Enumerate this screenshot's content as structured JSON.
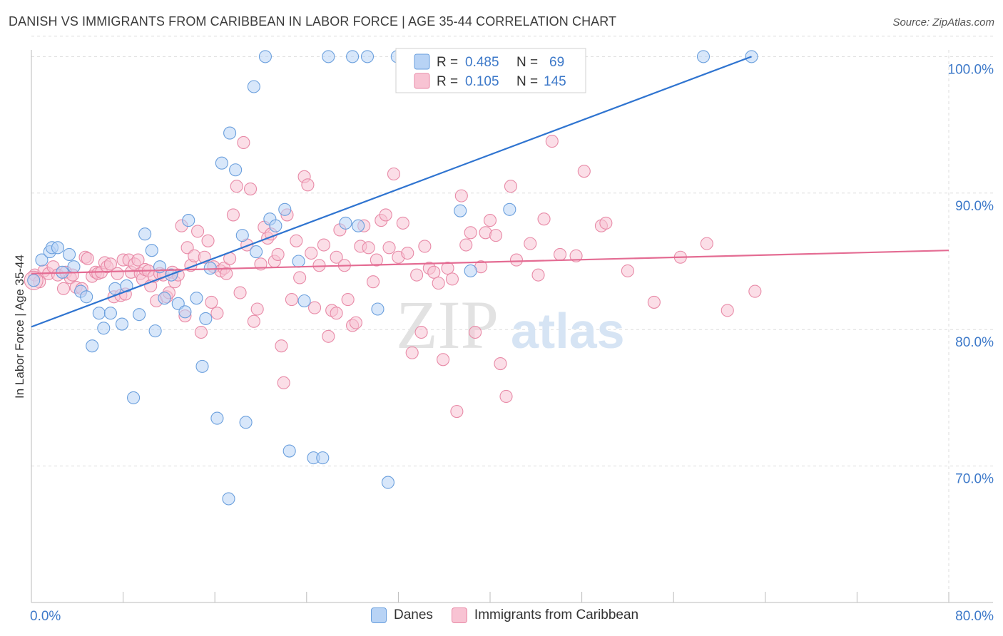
{
  "title": "DANISH VS IMMIGRANTS FROM CARIBBEAN IN LABOR FORCE | AGE 35-44 CORRELATION CHART",
  "source": "Source: ZipAtlas.com",
  "watermark": {
    "zip": "ZIP",
    "atlas": "atlas"
  },
  "colors": {
    "blue_fill": "#b8d3f5",
    "blue_stroke": "#6a9fdd",
    "blue_line": "#2f74d0",
    "pink_fill": "#f8c3d3",
    "pink_stroke": "#e88aa7",
    "pink_line": "#e46c93",
    "axis_label": "#3d79c9",
    "grid": "#dddddd"
  },
  "legend_top": {
    "r_label": "R =",
    "n_label": "N =",
    "rows": [
      {
        "series": "Danes",
        "r": "0.485",
        "n": "69"
      },
      {
        "series": "Immigrants from Caribbean",
        "r": "0.105",
        "n": "145"
      }
    ]
  },
  "legend_bottom": [
    "Danes",
    "Immigrants from Caribbean"
  ],
  "chart_data": {
    "type": "scatter",
    "title": "DANISH VS IMMIGRANTS FROM CARIBBEAN IN LABOR FORCE | AGE 35-44 CORRELATION CHART",
    "xlabel": "",
    "ylabel": "In Labor Force | Age 35-44",
    "xlim": [
      0,
      80
    ],
    "ylim": [
      60,
      102
    ],
    "x_tick_labels": [
      "0.0%",
      "80.0%"
    ],
    "y_ticks": [
      70,
      80,
      90,
      100
    ],
    "y_tick_labels": [
      "70.0%",
      "80.0%",
      "90.0%",
      "100.0%"
    ],
    "grid": true,
    "series": [
      {
        "name": "Danes",
        "r": 0.485,
        "n": 69,
        "trend": {
          "x": [
            0,
            62.8
          ],
          "y": [
            80.2,
            100.0
          ]
        },
        "points": [
          [
            0.2,
            83.6
          ],
          [
            0.9,
            85.1
          ],
          [
            1.6,
            85.7
          ],
          [
            1.8,
            86.0
          ],
          [
            2.3,
            86.0
          ],
          [
            2.7,
            84.2
          ],
          [
            3.3,
            85.5
          ],
          [
            3.7,
            84.6
          ],
          [
            4.3,
            82.8
          ],
          [
            4.8,
            82.4
          ],
          [
            5.3,
            78.8
          ],
          [
            5.9,
            81.2
          ],
          [
            6.3,
            80.1
          ],
          [
            6.9,
            81.2
          ],
          [
            7.3,
            83.0
          ],
          [
            7.9,
            80.4
          ],
          [
            8.3,
            83.2
          ],
          [
            8.9,
            75.0
          ],
          [
            9.4,
            81.1
          ],
          [
            9.9,
            87.0
          ],
          [
            10.5,
            85.8
          ],
          [
            10.8,
            79.9
          ],
          [
            11.2,
            84.6
          ],
          [
            11.6,
            82.3
          ],
          [
            12.2,
            84.0
          ],
          [
            12.8,
            81.9
          ],
          [
            13.4,
            81.3
          ],
          [
            13.7,
            88.0
          ],
          [
            14.4,
            82.3
          ],
          [
            14.9,
            77.3
          ],
          [
            15.2,
            80.8
          ],
          [
            15.6,
            84.5
          ],
          [
            16.2,
            73.5
          ],
          [
            16.6,
            92.2
          ],
          [
            17.3,
            94.4
          ],
          [
            17.8,
            91.7
          ],
          [
            18.7,
            73.2
          ],
          [
            18.4,
            86.9
          ],
          [
            19.4,
            97.8
          ],
          [
            19.6,
            85.7
          ],
          [
            20.4,
            100.0
          ],
          [
            20.8,
            88.1
          ],
          [
            21.3,
            87.6
          ],
          [
            22.1,
            88.8
          ],
          [
            22.5,
            71.1
          ],
          [
            23.3,
            85.0
          ],
          [
            23.8,
            82.1
          ],
          [
            24.6,
            70.6
          ],
          [
            25.4,
            70.6
          ],
          [
            25.9,
            100.0
          ],
          [
            27.4,
            87.8
          ],
          [
            28.0,
            100.0
          ],
          [
            28.5,
            87.6
          ],
          [
            29.3,
            100.0
          ],
          [
            30.2,
            81.5
          ],
          [
            31.1,
            68.8
          ],
          [
            31.9,
            100.0
          ],
          [
            32.4,
            100.0
          ],
          [
            33.1,
            100.0
          ],
          [
            34.2,
            100.0
          ],
          [
            36.1,
            100.0
          ],
          [
            37.4,
            88.7
          ],
          [
            38.3,
            84.3
          ],
          [
            40.1,
            100.0
          ],
          [
            41.7,
            88.8
          ],
          [
            47.6,
            100.0
          ],
          [
            58.6,
            100.0
          ],
          [
            62.8,
            100.0
          ],
          [
            17.2,
            67.6
          ]
        ]
      },
      {
        "name": "Immigrants from Caribbean",
        "r": 0.105,
        "n": 145,
        "trend": {
          "x": [
            0,
            80
          ],
          "y": [
            84.1,
            85.8
          ]
        },
        "points": [
          [
            0.3,
            84.0
          ],
          [
            0.7,
            83.5
          ],
          [
            1.1,
            84.3
          ],
          [
            1.5,
            84.1
          ],
          [
            1.9,
            84.6
          ],
          [
            2.3,
            84.0
          ],
          [
            2.8,
            83.0
          ],
          [
            3.0,
            84.2
          ],
          [
            3.4,
            83.8
          ],
          [
            3.6,
            84.0
          ],
          [
            3.9,
            83.1
          ],
          [
            4.4,
            83.0
          ],
          [
            4.7,
            85.3
          ],
          [
            4.9,
            85.2
          ],
          [
            5.3,
            83.9
          ],
          [
            5.6,
            84.2
          ],
          [
            5.8,
            84.1
          ],
          [
            6.1,
            84.2
          ],
          [
            6.4,
            84.9
          ],
          [
            6.6,
            84.6
          ],
          [
            6.9,
            84.8
          ],
          [
            7.2,
            82.4
          ],
          [
            7.5,
            84.1
          ],
          [
            7.8,
            82.5
          ],
          [
            8.0,
            85.1
          ],
          [
            8.2,
            82.6
          ],
          [
            8.5,
            85.1
          ],
          [
            8.7,
            84.2
          ],
          [
            9.0,
            84.8
          ],
          [
            9.3,
            85.1
          ],
          [
            9.5,
            84.1
          ],
          [
            9.7,
            83.7
          ],
          [
            9.9,
            84.4
          ],
          [
            10.2,
            84.3
          ],
          [
            10.4,
            83.2
          ],
          [
            10.7,
            83.9
          ],
          [
            10.9,
            82.1
          ],
          [
            11.2,
            84.1
          ],
          [
            11.5,
            84.0
          ],
          [
            11.8,
            82.4
          ],
          [
            12.0,
            82.7
          ],
          [
            12.3,
            84.2
          ],
          [
            12.5,
            83.5
          ],
          [
            12.8,
            84.0
          ],
          [
            13.1,
            87.6
          ],
          [
            13.4,
            81.0
          ],
          [
            13.6,
            86.0
          ],
          [
            13.9,
            84.7
          ],
          [
            14.2,
            85.4
          ],
          [
            14.5,
            87.2
          ],
          [
            14.8,
            79.8
          ],
          [
            15.1,
            85.3
          ],
          [
            15.4,
            86.5
          ],
          [
            15.7,
            82.0
          ],
          [
            15.9,
            84.6
          ],
          [
            16.2,
            81.2
          ],
          [
            16.5,
            84.3
          ],
          [
            16.8,
            84.5
          ],
          [
            17.0,
            84.1
          ],
          [
            17.3,
            85.2
          ],
          [
            17.6,
            88.4
          ],
          [
            17.9,
            90.5
          ],
          [
            18.2,
            82.7
          ],
          [
            18.5,
            93.7
          ],
          [
            18.8,
            86.2
          ],
          [
            19.1,
            90.3
          ],
          [
            19.4,
            80.6
          ],
          [
            19.7,
            81.5
          ],
          [
            20.0,
            84.8
          ],
          [
            20.3,
            87.5
          ],
          [
            20.6,
            86.7
          ],
          [
            20.9,
            87.0
          ],
          [
            21.2,
            85.0
          ],
          [
            21.5,
            85.5
          ],
          [
            21.8,
            78.8
          ],
          [
            22.0,
            76.1
          ],
          [
            22.3,
            88.4
          ],
          [
            22.7,
            82.2
          ],
          [
            23.1,
            86.5
          ],
          [
            23.4,
            83.8
          ],
          [
            23.8,
            91.2
          ],
          [
            24.1,
            90.6
          ],
          [
            24.4,
            85.6
          ],
          [
            24.7,
            81.6
          ],
          [
            25.1,
            84.7
          ],
          [
            25.5,
            86.2
          ],
          [
            25.9,
            79.5
          ],
          [
            26.2,
            81.4
          ],
          [
            26.6,
            85.3
          ],
          [
            26.9,
            87.3
          ],
          [
            27.3,
            84.7
          ],
          [
            27.6,
            82.2
          ],
          [
            28.0,
            80.3
          ],
          [
            28.3,
            80.5
          ],
          [
            28.7,
            86.1
          ],
          [
            29.0,
            87.6
          ],
          [
            29.4,
            86.0
          ],
          [
            29.8,
            83.5
          ],
          [
            30.1,
            85.1
          ],
          [
            30.5,
            88.0
          ],
          [
            30.9,
            88.4
          ],
          [
            31.2,
            86.0
          ],
          [
            31.6,
            91.4
          ],
          [
            32.0,
            85.3
          ],
          [
            32.4,
            87.8
          ],
          [
            32.8,
            85.6
          ],
          [
            33.2,
            78.3
          ],
          [
            33.6,
            84.0
          ],
          [
            34.0,
            79.8
          ],
          [
            34.3,
            86.1
          ],
          [
            34.7,
            84.5
          ],
          [
            35.1,
            84.2
          ],
          [
            35.5,
            83.4
          ],
          [
            35.9,
            77.8
          ],
          [
            36.3,
            84.5
          ],
          [
            36.7,
            83.7
          ],
          [
            37.1,
            74.0
          ],
          [
            37.5,
            89.8
          ],
          [
            37.9,
            86.2
          ],
          [
            38.3,
            87.1
          ],
          [
            38.7,
            79.8
          ],
          [
            39.2,
            84.6
          ],
          [
            39.6,
            87.1
          ],
          [
            40.0,
            88.0
          ],
          [
            40.5,
            86.9
          ],
          [
            40.9,
            77.5
          ],
          [
            41.4,
            75.1
          ],
          [
            41.8,
            90.5
          ],
          [
            42.3,
            85.1
          ],
          [
            43.5,
            86.3
          ],
          [
            44.2,
            84.0
          ],
          [
            44.7,
            88.1
          ],
          [
            45.4,
            93.8
          ],
          [
            46.1,
            85.5
          ],
          [
            47.5,
            85.4
          ],
          [
            48.2,
            91.6
          ],
          [
            49.7,
            87.6
          ],
          [
            50.1,
            87.8
          ],
          [
            52.0,
            84.3
          ],
          [
            54.3,
            82.0
          ],
          [
            56.6,
            85.3
          ],
          [
            58.9,
            86.3
          ],
          [
            60.7,
            81.4
          ],
          [
            63.1,
            82.8
          ],
          [
            26.6,
            81.2
          ]
        ]
      }
    ]
  }
}
